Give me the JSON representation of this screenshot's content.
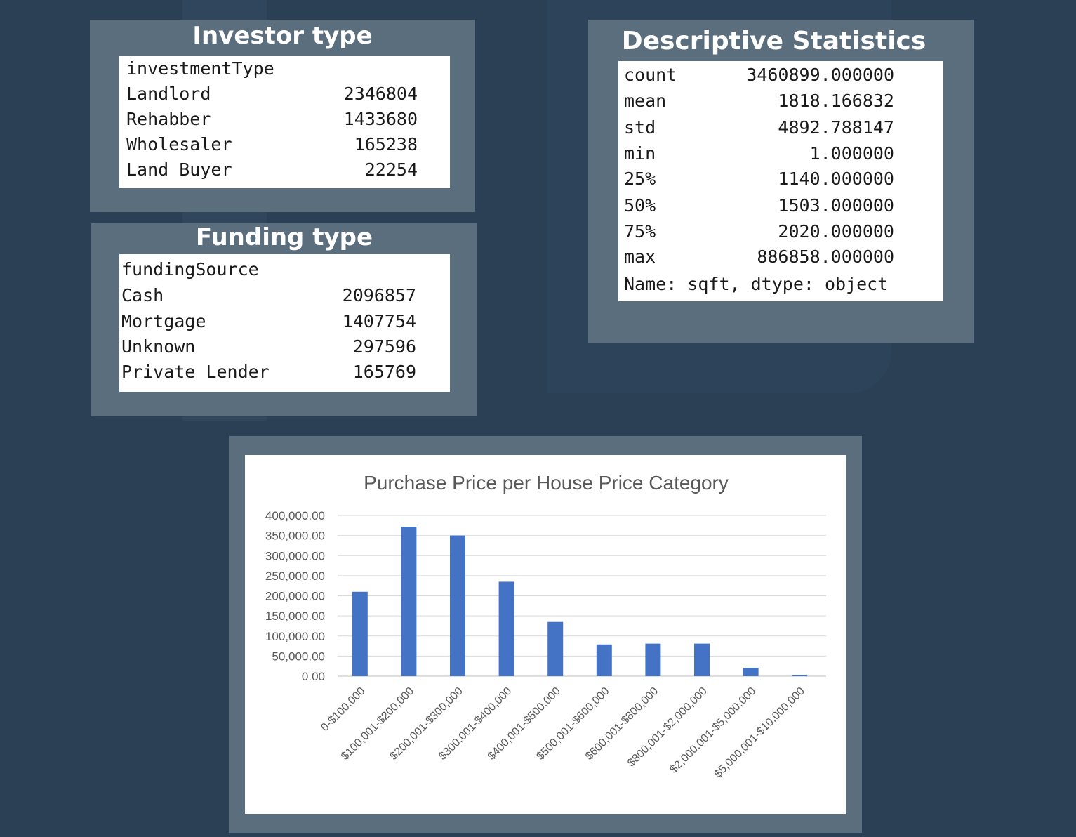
{
  "investor_panel": {
    "title": "Investor type",
    "header": "investmentType",
    "rows": [
      {
        "label": "Landlord",
        "value": "2346804"
      },
      {
        "label": "Rehabber",
        "value": "1433680"
      },
      {
        "label": "Wholesaler",
        "value": "165238"
      },
      {
        "label": "Land Buyer",
        "value": "22254"
      }
    ]
  },
  "funding_panel": {
    "title": "Funding type",
    "header": "fundingSource",
    "rows": [
      {
        "label": "Cash",
        "value": "2096857"
      },
      {
        "label": "Mortgage",
        "value": "1407754"
      },
      {
        "label": "Unknown",
        "value": "297596"
      },
      {
        "label": "Private Lender",
        "value": "165769"
      }
    ]
  },
  "stats_panel": {
    "title": "Descriptive Statistics",
    "rows": [
      {
        "label": "count",
        "value": "3460899.000000"
      },
      {
        "label": "mean",
        "value": "1818.166832"
      },
      {
        "label": "std",
        "value": "4892.788147"
      },
      {
        "label": "min",
        "value": "1.000000"
      },
      {
        "label": "25%",
        "value": "1140.000000"
      },
      {
        "label": "50%",
        "value": "1503.000000"
      },
      {
        "label": "75%",
        "value": "2020.000000"
      },
      {
        "label": "max",
        "value": "886858.000000"
      }
    ],
    "footer": "Name: sqft, dtype: object"
  },
  "colors": {
    "background": "#2b4055",
    "panel": "#5b6e7e",
    "bar": "#4472c4"
  },
  "chart_data": {
    "type": "bar",
    "title": "Purchase Price per House Price Category",
    "categories": [
      "0-$100,000",
      "$100,001-$200,000",
      "$200,001-$300,000",
      "$300,001-$400,000",
      "$400,001-$500,000",
      "$500,001-$600,000",
      "$600,001-$800,000",
      "$800,001-$2,000,000",
      "$2,000,001-$5,000,000",
      "$5,000,001-$10,000,000"
    ],
    "values": [
      210000,
      372000,
      350000,
      235000,
      135000,
      79000,
      81000,
      81000,
      21000,
      3000
    ],
    "yticks": [
      "0.00",
      "50,000.00",
      "100,000.00",
      "150,000.00",
      "200,000.00",
      "250,000.00",
      "300,000.00",
      "350,000.00",
      "400,000.00"
    ],
    "ylim": [
      0,
      400000
    ],
    "xlabel": "",
    "ylabel": "",
    "grid": true,
    "legend": "none"
  }
}
